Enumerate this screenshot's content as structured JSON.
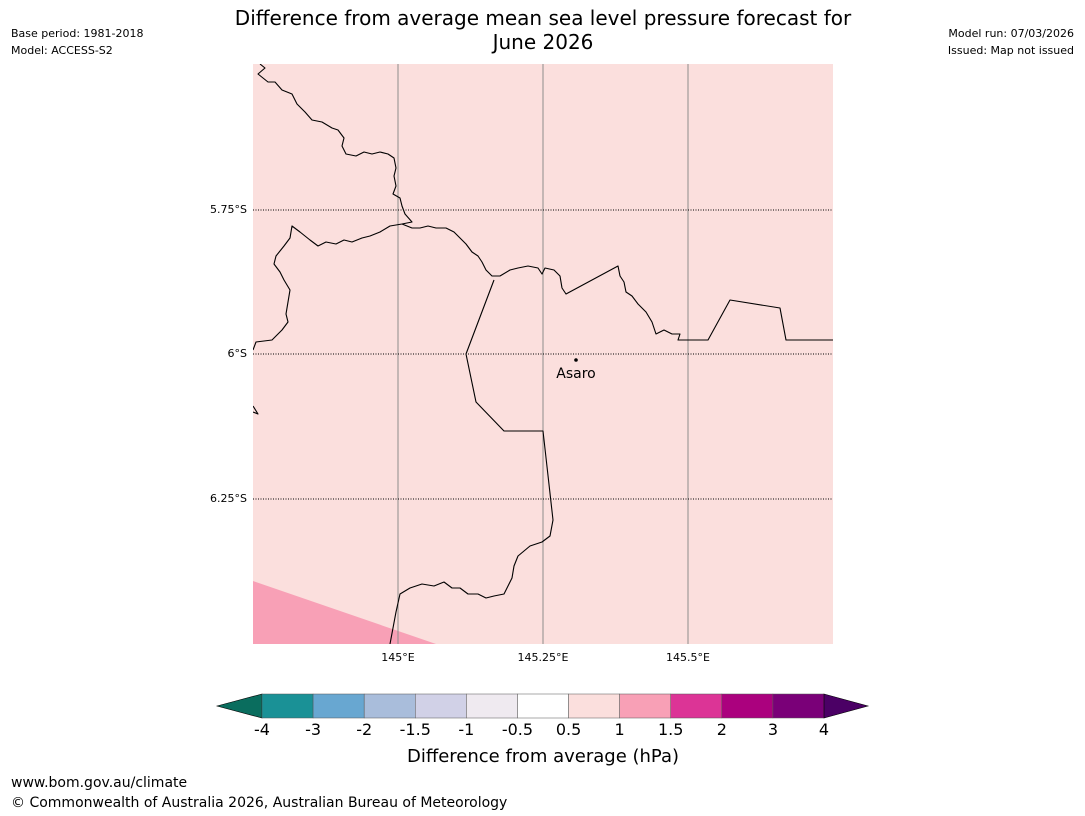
{
  "header": {
    "title_line1": "Difference from average mean sea level pressure forecast for",
    "title_line2": "June 2026",
    "base_period": "Base period: 1981-2018",
    "model": "Model: ACCESS-S2",
    "model_run": "Model run: 07/03/2026",
    "issued": "Issued: Map not issued"
  },
  "map": {
    "lat_labels": [
      "5.75°S",
      "6°S",
      "6.25°S"
    ],
    "lon_labels": [
      "145°E",
      "145.25°E",
      "145.5°E"
    ],
    "place": {
      "name": "Asaro"
    },
    "colors": {
      "background_fill": "#fbdfdd",
      "high_fill": "#f8a0b6",
      "boundary": "#000000",
      "gridline": "#8c8c8c"
    }
  },
  "colorbar": {
    "title": "Difference from average (hPa)",
    "ticks": [
      "-4",
      "-3",
      "-2",
      "-1.5",
      "-1",
      "-0.5",
      "0.5",
      "1",
      "1.5",
      "2",
      "3",
      "4"
    ],
    "bins": [
      {
        "range": "-4 to -3",
        "color": "#1a9196"
      },
      {
        "range": "-3 to -2",
        "color": "#68a7d1"
      },
      {
        "range": "-2 to -1.5",
        "color": "#a9bddb"
      },
      {
        "range": "-1.5 to -1",
        "color": "#d1d1e7"
      },
      {
        "range": "-1 to -0.5",
        "color": "#efeaf0"
      },
      {
        "range": "-0.5 to 0.5",
        "color": "#ffffff"
      },
      {
        "range": "0.5 to 1",
        "color": "#fbdfdd"
      },
      {
        "range": "1 to 1.5",
        "color": "#f8a0b6"
      },
      {
        "range": "1.5 to 2",
        "color": "#dc3496"
      },
      {
        "range": "2 to 3",
        "color": "#ab017e"
      },
      {
        "range": "3 to 4",
        "color": "#7a0078"
      }
    ],
    "below_color": "#0a6d5e",
    "above_color": "#4b0065"
  },
  "footer": {
    "url": "www.bom.gov.au/climate",
    "copyright": "© Commonwealth of Australia 2026, Australian Bureau of Meteorology"
  }
}
